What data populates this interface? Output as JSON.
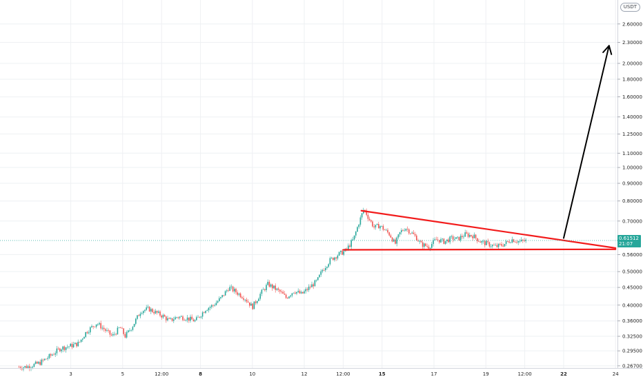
{
  "currency_badge": "USDT",
  "current_price": {
    "value": "0.61512",
    "countdown": "21:07",
    "color": "#26a69a"
  },
  "chart_data": {
    "type": "candlestick",
    "title": "",
    "xlabel": "",
    "ylabel": "",
    "y_scale": "log",
    "ylim": [
      0.262,
      3.05
    ],
    "grid": true,
    "y_ticks": [
      {
        "value": 2.6,
        "label": "2.60000"
      },
      {
        "value": 2.3,
        "label": "2.30000"
      },
      {
        "value": 2.0,
        "label": "2.00000"
      },
      {
        "value": 1.8,
        "label": "1.80000"
      },
      {
        "value": 1.6,
        "label": "1.60000"
      },
      {
        "value": 1.4,
        "label": "1.40000"
      },
      {
        "value": 1.25,
        "label": "1.25000"
      },
      {
        "value": 1.1,
        "label": "1.10000"
      },
      {
        "value": 1.0,
        "label": "1.00000"
      },
      {
        "value": 0.9,
        "label": "0.90000"
      },
      {
        "value": 0.8,
        "label": "0.80000"
      },
      {
        "value": 0.7,
        "label": "0.70000"
      },
      {
        "value": 0.56,
        "label": "0.56000"
      },
      {
        "value": 0.5,
        "label": "0.50000"
      },
      {
        "value": 0.45,
        "label": "0.45000"
      },
      {
        "value": 0.4,
        "label": "0.40000"
      },
      {
        "value": 0.36,
        "label": "0.36000"
      },
      {
        "value": 0.325,
        "label": "0.32500"
      },
      {
        "value": 0.295,
        "label": "0.29500"
      },
      {
        "value": 0.267,
        "label": "0.26700"
      }
    ],
    "x_ticks": [
      {
        "t": 2,
        "label": "3",
        "bold": false
      },
      {
        "t": 4,
        "label": "5",
        "bold": false
      },
      {
        "t": 5.5,
        "label": "12:00",
        "bold": false
      },
      {
        "t": 7,
        "label": "8",
        "bold": true
      },
      {
        "t": 9,
        "label": "10",
        "bold": false
      },
      {
        "t": 11,
        "label": "12",
        "bold": false
      },
      {
        "t": 12.5,
        "label": "12:00",
        "bold": false
      },
      {
        "t": 14,
        "label": "15",
        "bold": true
      },
      {
        "t": 16,
        "label": "17",
        "bold": false
      },
      {
        "t": 18,
        "label": "19",
        "bold": false
      },
      {
        "t": 19.5,
        "label": "12:00",
        "bold": false
      },
      {
        "t": 21,
        "label": "22",
        "bold": true
      },
      {
        "t": 23,
        "label": "24",
        "bold": false
      }
    ],
    "price_path": [
      [
        0.3,
        0.265
      ],
      [
        0.8,
        0.272
      ],
      [
        1.2,
        0.285
      ],
      [
        1.6,
        0.3
      ],
      [
        2.0,
        0.305
      ],
      [
        2.3,
        0.31
      ],
      [
        2.6,
        0.335
      ],
      [
        3.0,
        0.355
      ],
      [
        3.3,
        0.34
      ],
      [
        3.6,
        0.325
      ],
      [
        3.9,
        0.345
      ],
      [
        4.1,
        0.325
      ],
      [
        4.4,
        0.35
      ],
      [
        4.7,
        0.385
      ],
      [
        5.0,
        0.39
      ],
      [
        5.3,
        0.38
      ],
      [
        5.6,
        0.37
      ],
      [
        5.8,
        0.36
      ],
      [
        6.1,
        0.37
      ],
      [
        6.4,
        0.368
      ],
      [
        6.8,
        0.36
      ],
      [
        7.2,
        0.39
      ],
      [
        7.5,
        0.4
      ],
      [
        7.8,
        0.42
      ],
      [
        8.1,
        0.45
      ],
      [
        8.4,
        0.435
      ],
      [
        8.7,
        0.42
      ],
      [
        9.0,
        0.395
      ],
      [
        9.3,
        0.43
      ],
      [
        9.6,
        0.46
      ],
      [
        9.8,
        0.45
      ],
      [
        10.1,
        0.435
      ],
      [
        10.3,
        0.42
      ],
      [
        10.6,
        0.44
      ],
      [
        10.9,
        0.43
      ],
      [
        11.2,
        0.45
      ],
      [
        11.5,
        0.47
      ],
      [
        11.7,
        0.505
      ],
      [
        12.0,
        0.54
      ],
      [
        12.3,
        0.56
      ],
      [
        12.6,
        0.575
      ],
      [
        12.9,
        0.62
      ],
      [
        13.1,
        0.69
      ],
      [
        13.3,
        0.76
      ],
      [
        13.5,
        0.71
      ],
      [
        13.7,
        0.67
      ],
      [
        13.9,
        0.68
      ],
      [
        14.1,
        0.66
      ],
      [
        14.3,
        0.64
      ],
      [
        14.5,
        0.6
      ],
      [
        14.7,
        0.65
      ],
      [
        14.9,
        0.67
      ],
      [
        15.1,
        0.65
      ],
      [
        15.3,
        0.63
      ],
      [
        15.5,
        0.6
      ],
      [
        15.8,
        0.59
      ],
      [
        16.1,
        0.62
      ],
      [
        16.4,
        0.61
      ],
      [
        16.7,
        0.625
      ],
      [
        16.9,
        0.62
      ],
      [
        17.2,
        0.64
      ],
      [
        17.5,
        0.635
      ],
      [
        17.8,
        0.61
      ],
      [
        18.1,
        0.6
      ],
      [
        18.4,
        0.59
      ],
      [
        18.7,
        0.6
      ],
      [
        19.0,
        0.62
      ],
      [
        19.3,
        0.61
      ],
      [
        19.6,
        0.615
      ]
    ],
    "annotations": {
      "upper_trendline": {
        "from": [
          13.2,
          0.75
        ],
        "to": [
          23.0,
          0.585
        ],
        "color": "#f21b1b"
      },
      "lower_trendline": {
        "from": [
          12.5,
          0.578
        ],
        "to": [
          23.0,
          0.58
        ],
        "color": "#f21b1b"
      },
      "breakout_arrow": {
        "from": [
          21.0,
          0.625
        ],
        "to": [
          22.75,
          2.25
        ],
        "color": "#000000"
      }
    },
    "colors": {
      "up": "#26a69a",
      "down": "#ef5350",
      "grid": "#eef0f3"
    }
  }
}
